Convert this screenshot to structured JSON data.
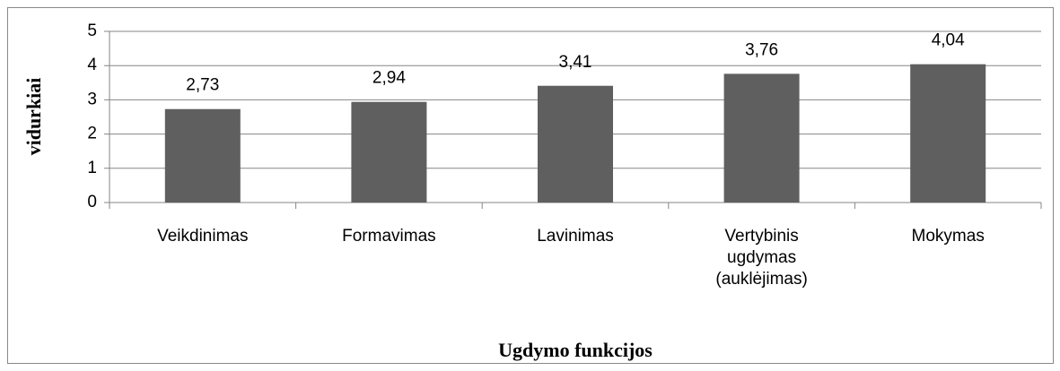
{
  "chart_data": {
    "type": "bar",
    "categories": [
      "Veikdinimas",
      "Formavimas",
      "Lavinimas",
      "Vertybinis ugdymas (auklėjimas)",
      "Mokymas"
    ],
    "values": [
      2.73,
      2.94,
      3.41,
      3.76,
      4.04
    ],
    "value_labels": [
      "2,73",
      "2,94",
      "3,41",
      "3,76",
      "4,04"
    ],
    "color": "#5f5f5f",
    "ylabel": "vidurkiai",
    "xlabel": "Ugdymo funkcijos",
    "ylim": [
      0,
      5
    ],
    "yticks": [
      0,
      1,
      2,
      3,
      4,
      5
    ],
    "grid": true
  }
}
